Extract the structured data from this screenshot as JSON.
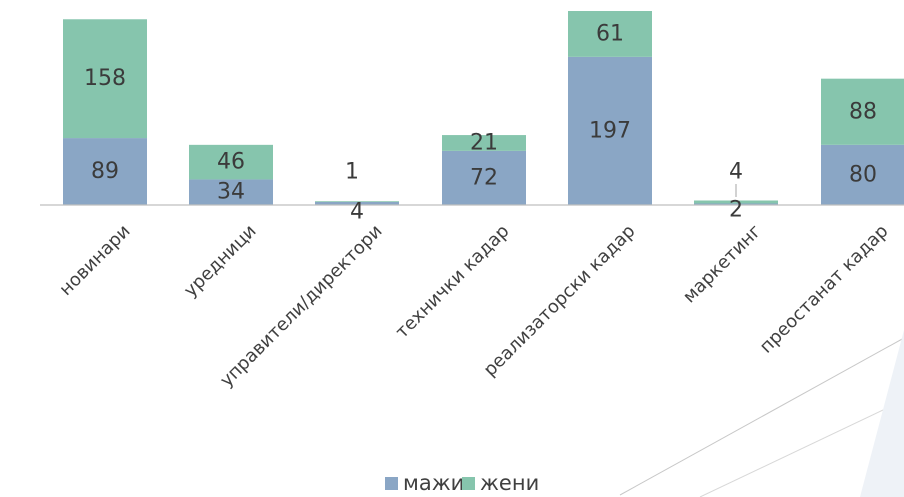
{
  "chart_data": {
    "type": "bar",
    "stacked": true,
    "categories": [
      "новинари",
      "уредници",
      "управители/директори",
      "технички кадар",
      "реализаторски кадар",
      "маркетинг",
      "преостанат кадар"
    ],
    "series": [
      {
        "name": "мажи",
        "color": "#8aa6c5",
        "values": [
          89,
          34,
          4,
          72,
          197,
          2,
          80
        ]
      },
      {
        "name": "жени",
        "color": "#86c5ad",
        "values": [
          158,
          46,
          1,
          21,
          61,
          4,
          88
        ]
      }
    ],
    "data_labels": true,
    "legend_position": "bottom",
    "grid": false
  }
}
